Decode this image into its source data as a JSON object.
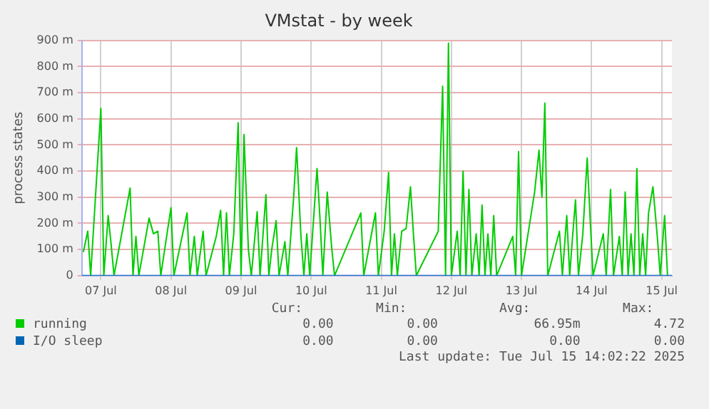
{
  "chart_data": {
    "type": "line",
    "title": "VMstat - by week",
    "ylabel": "process states",
    "xlim": [
      "2025-07-07T05:30",
      "2025-07-15T15:30"
    ],
    "xticks": [
      {
        "value": "2025-07-07T12:00",
        "label": "07 Jul"
      },
      {
        "value": "2025-07-08T12:00",
        "label": "08 Jul"
      },
      {
        "value": "2025-07-09T12:00",
        "label": "09 Jul"
      },
      {
        "value": "2025-07-10T12:00",
        "label": "10 Jul"
      },
      {
        "value": "2025-07-11T12:00",
        "label": "11 Jul"
      },
      {
        "value": "2025-07-12T12:00",
        "label": "12 Jul"
      },
      {
        "value": "2025-07-13T12:00",
        "label": "13 Jul"
      },
      {
        "value": "2025-07-14T12:00",
        "label": "14 Jul"
      },
      {
        "value": "2025-07-15T12:00",
        "label": "15 Jul"
      }
    ],
    "ylim": [
      0,
      900
    ],
    "yticks": [
      0,
      {
        "value": 100,
        "label": "100 m"
      },
      {
        "value": 200,
        "label": "200 m"
      },
      {
        "value": 300,
        "label": "300 m"
      },
      {
        "value": 400,
        "label": "400 m"
      },
      {
        "value": 500,
        "label": "500 m"
      },
      {
        "value": 600,
        "label": "600 m"
      },
      {
        "value": 700,
        "label": "700 m"
      },
      {
        "value": 800,
        "label": "800 m"
      },
      {
        "value": 900,
        "label": "900 m"
      }
    ],
    "grid": true,
    "legend": "bottom",
    "marker": "none",
    "line_style": "solid",
    "series": [
      {
        "name": "running",
        "color": "#00cc00",
        "x": [
          "2025-07-07T06:00",
          "2025-07-07T07:30",
          "2025-07-07T08:30",
          "2025-07-07T12:00",
          "2025-07-07T13:00",
          "2025-07-07T14:30",
          "2025-07-07T15:30",
          "2025-07-07T16:30",
          "2025-07-07T22:00",
          "2025-07-07T23:00",
          "2025-07-08T00:00",
          "2025-07-08T01:00",
          "2025-07-08T04:30",
          "2025-07-08T06:00",
          "2025-07-08T07:30",
          "2025-07-08T08:30",
          "2025-07-08T12:00",
          "2025-07-08T13:00",
          "2025-07-08T17:30",
          "2025-07-08T18:30",
          "2025-07-08T20:00",
          "2025-07-08T21:00",
          "2025-07-08T23:00",
          "2025-07-09T00:00",
          "2025-07-09T03:30",
          "2025-07-09T05:00",
          "2025-07-09T06:00",
          "2025-07-09T07:00",
          "2025-07-09T08:00",
          "2025-07-09T09:30",
          "2025-07-09T11:00",
          "2025-07-09T12:00",
          "2025-07-09T13:00",
          "2025-07-09T14:30",
          "2025-07-09T15:30",
          "2025-07-09T17:30",
          "2025-07-09T18:30",
          "2025-07-09T20:30",
          "2025-07-09T21:30",
          "2025-07-09T22:30",
          "2025-07-10T00:00",
          "2025-07-10T01:00",
          "2025-07-10T03:00",
          "2025-07-10T04:00",
          "2025-07-10T06:00",
          "2025-07-10T07:00",
          "2025-07-10T08:30",
          "2025-07-10T09:30",
          "2025-07-10T10:30",
          "2025-07-10T11:30",
          "2025-07-10T14:00",
          "2025-07-10T15:00",
          "2025-07-10T16:00",
          "2025-07-10T17:30",
          "2025-07-10T19:00",
          "2025-07-10T20:00",
          "2025-07-11T05:00",
          "2025-07-11T06:00",
          "2025-07-11T10:00",
          "2025-07-11T11:00",
          "2025-07-11T13:00",
          "2025-07-11T14:30",
          "2025-07-11T15:30",
          "2025-07-11T16:30",
          "2025-07-11T17:30",
          "2025-07-11T19:00",
          "2025-07-11T20:30",
          "2025-07-11T22:00",
          "2025-07-11T23:00",
          "2025-07-12T00:00",
          "2025-07-12T07:30",
          "2025-07-12T09:00",
          "2025-07-12T10:00",
          "2025-07-12T11:00",
          "2025-07-12T12:00",
          "2025-07-12T14:00",
          "2025-07-12T15:00",
          "2025-07-12T16:00",
          "2025-07-12T17:00",
          "2025-07-12T18:00",
          "2025-07-12T19:00",
          "2025-07-12T20:30",
          "2025-07-12T21:30",
          "2025-07-12T22:30",
          "2025-07-12T23:30",
          "2025-07-13T00:30",
          "2025-07-13T01:30",
          "2025-07-13T02:30",
          "2025-07-13T03:30",
          "2025-07-13T09:00",
          "2025-07-13T10:00",
          "2025-07-13T11:00",
          "2025-07-13T12:00",
          "2025-07-13T16:30",
          "2025-07-13T18:00",
          "2025-07-13T19:00",
          "2025-07-13T20:00",
          "2025-07-13T21:00",
          "2025-07-14T01:00",
          "2025-07-14T02:00",
          "2025-07-14T03:30",
          "2025-07-14T04:30",
          "2025-07-14T05:30",
          "2025-07-14T06:30",
          "2025-07-14T07:30",
          "2025-07-14T09:00",
          "2025-07-14T10:30",
          "2025-07-14T11:30",
          "2025-07-14T12:30",
          "2025-07-14T16:00",
          "2025-07-14T17:00",
          "2025-07-14T18:30",
          "2025-07-14T19:30",
          "2025-07-14T21:30",
          "2025-07-14T22:30",
          "2025-07-14T23:30",
          "2025-07-15T00:30",
          "2025-07-15T01:30",
          "2025-07-15T02:30",
          "2025-07-15T03:30",
          "2025-07-15T04:30",
          "2025-07-15T05:30",
          "2025-07-15T06:30",
          "2025-07-15T07:30",
          "2025-07-15T09:00",
          "2025-07-15T10:30",
          "2025-07-15T11:30",
          "2025-07-15T13:00",
          "2025-07-15T14:00"
        ],
        "values": [
          90,
          170,
          0,
          640,
          0,
          230,
          120,
          0,
          335,
          0,
          150,
          0,
          220,
          160,
          170,
          0,
          260,
          0,
          240,
          0,
          150,
          0,
          170,
          0,
          150,
          250,
          0,
          240,
          0,
          160,
          585,
          0,
          540,
          100,
          0,
          245,
          0,
          310,
          0,
          100,
          210,
          0,
          130,
          0,
          300,
          490,
          150,
          0,
          160,
          0,
          410,
          220,
          0,
          320,
          110,
          0,
          240,
          0,
          240,
          0,
          170,
          395,
          0,
          160,
          0,
          170,
          180,
          340,
          160,
          0,
          170,
          725,
          0,
          890,
          0,
          170,
          0,
          400,
          0,
          330,
          0,
          160,
          0,
          270,
          0,
          160,
          0,
          230,
          0,
          150,
          0,
          475,
          0,
          320,
          480,
          300,
          660,
          0,
          170,
          0,
          230,
          0,
          150,
          290,
          0,
          160,
          450,
          220,
          0,
          160,
          0,
          330,
          0,
          150,
          0,
          320,
          0,
          160,
          0,
          410,
          0,
          160,
          0,
          240,
          340,
          150,
          0,
          230,
          0
        ]
      },
      {
        "name": "I/O sleep",
        "color": "#0066b3",
        "x": [
          "2025-07-07T05:30",
          "2025-07-15T15:30"
        ],
        "values": [
          0,
          0
        ]
      }
    ],
    "annotations": [
      "Cur:",
      "Min:",
      "Avg:",
      "Max:",
      "0.00",
      "0.00",
      "66.95m",
      "4.72",
      "0.00",
      "0.00",
      "0.00",
      "0.00",
      "Last update: Tue Jul 15 14:02:22 2025"
    ]
  }
}
